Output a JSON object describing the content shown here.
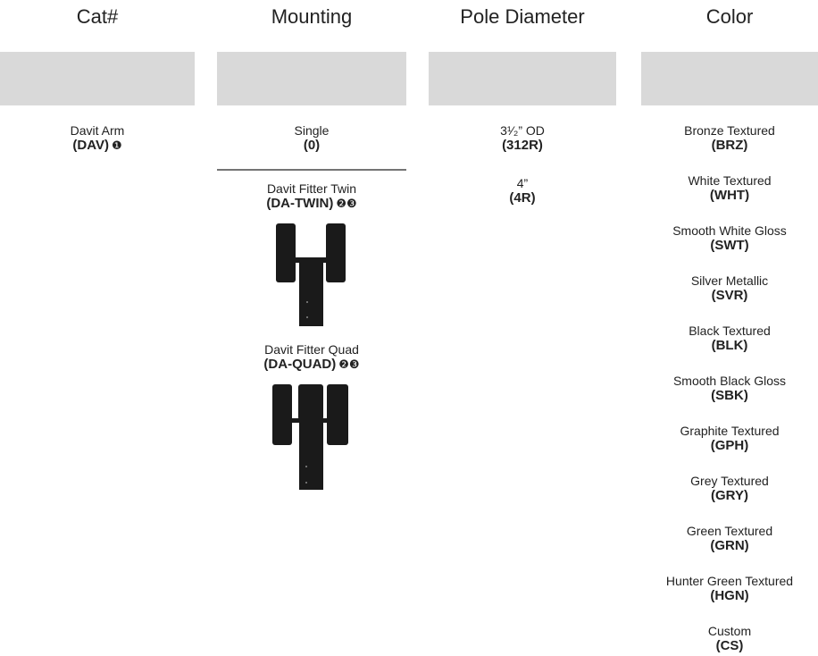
{
  "columns": [
    {
      "header": "Cat#",
      "options": [
        {
          "name": "Davit Arm",
          "code": "(DAV)",
          "notes": "❶"
        }
      ]
    },
    {
      "header": "Mounting",
      "options": [
        {
          "name": "Single",
          "code": "(0)"
        },
        {
          "name": "Davit Fitter Twin",
          "code": "(DA-TWIN)",
          "notes": "❷❸"
        },
        {
          "name": "Davit Fitter Quad",
          "code": "(DA-QUAD)",
          "notes": "❷❸"
        }
      ]
    },
    {
      "header": "Pole Diameter",
      "options": [
        {
          "name": "3¹⁄₂” OD",
          "code": "(312R)"
        },
        {
          "name": "4”",
          "code": "(4R)"
        }
      ]
    },
    {
      "header": "Color",
      "options": [
        {
          "name": "Bronze Textured",
          "code": "(BRZ)"
        },
        {
          "name": "White Textured",
          "code": "(WHT)"
        },
        {
          "name": "Smooth White Gloss",
          "code": "(SWT)"
        },
        {
          "name": "Silver Metallic",
          "code": "(SVR)"
        },
        {
          "name": "Black Textured",
          "code": "(BLK)"
        },
        {
          "name": "Smooth Black Gloss",
          "code": "(SBK)"
        },
        {
          "name": "Graphite Textured",
          "code": "(GPH)"
        },
        {
          "name": "Grey Textured",
          "code": "(GRY)"
        },
        {
          "name": "Green Textured",
          "code": "(GRN)"
        },
        {
          "name": "Hunter Green Textured",
          "code": "(HGN)"
        },
        {
          "name": "Custom",
          "code": "(CS)"
        }
      ]
    }
  ]
}
